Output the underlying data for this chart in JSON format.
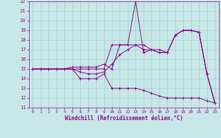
{
  "xlabel": "Windchill (Refroidissement éolien,°C)",
  "xlim": [
    -0.5,
    23.5
  ],
  "ylim": [
    11,
    22
  ],
  "yticks": [
    11,
    12,
    13,
    14,
    15,
    16,
    17,
    18,
    19,
    20,
    21,
    22
  ],
  "xticks": [
    0,
    1,
    2,
    3,
    4,
    5,
    6,
    7,
    8,
    9,
    10,
    11,
    12,
    13,
    14,
    15,
    16,
    17,
    18,
    19,
    20,
    21,
    22,
    23
  ],
  "bg_color": "#c8e8e8",
  "grid_color": "#a0cccc",
  "line_color": "#880088",
  "line1": [
    15.0,
    15.0,
    15.0,
    15.0,
    15.0,
    15.0,
    15.0,
    15.0,
    15.0,
    15.0,
    17.5,
    17.5,
    17.5,
    17.5,
    17.0,
    17.0,
    16.7,
    16.7,
    18.5,
    19.0,
    19.0,
    18.8,
    14.5,
    11.5
  ],
  "line2": [
    15.0,
    15.0,
    15.0,
    15.0,
    15.0,
    15.2,
    15.2,
    15.2,
    15.2,
    15.5,
    15.0,
    17.5,
    17.5,
    22.0,
    16.7,
    17.0,
    16.7,
    16.7,
    18.5,
    19.0,
    19.0,
    18.8,
    14.5,
    11.5
  ],
  "line3": [
    15.0,
    15.0,
    15.0,
    15.0,
    15.0,
    15.0,
    14.7,
    14.5,
    14.5,
    14.7,
    15.5,
    16.5,
    17.0,
    17.5,
    17.5,
    17.0,
    17.0,
    16.7,
    18.5,
    19.0,
    19.0,
    18.8,
    14.5,
    11.5
  ],
  "line4": [
    15.0,
    15.0,
    15.0,
    15.0,
    15.0,
    15.0,
    14.0,
    14.0,
    14.0,
    14.5,
    13.0,
    13.0,
    13.0,
    13.0,
    12.8,
    12.5,
    12.2,
    12.0,
    12.0,
    12.0,
    12.0,
    12.0,
    11.7,
    11.5
  ]
}
